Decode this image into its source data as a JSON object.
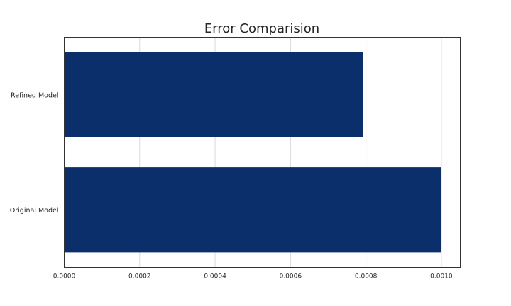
{
  "chart_data": {
    "type": "bar",
    "orientation": "horizontal",
    "title": "Error Comparision",
    "xlabel": "",
    "ylabel": "",
    "categories": [
      "Original Model",
      "Refined Model"
    ],
    "values": [
      0.001,
      0.000792
    ],
    "xlim": [
      0,
      0.00105
    ],
    "xticks": [
      "0.0000",
      "0.0002",
      "0.0004",
      "0.0006",
      "0.0008",
      "0.0010"
    ],
    "grid": true,
    "bar_color": "#0a2f6b"
  }
}
